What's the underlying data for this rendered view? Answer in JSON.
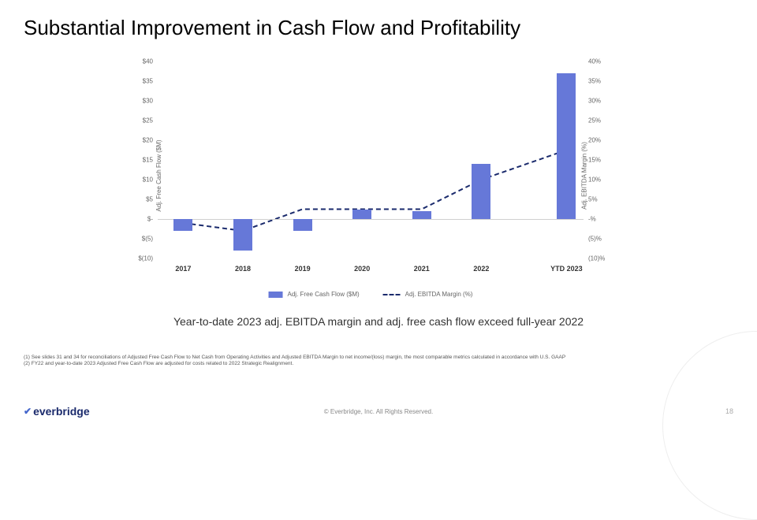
{
  "title": "Substantial Improvement in Cash Flow and Profitability",
  "subtitle": "Year-to-date 2023 adj. EBITDA margin and adj. free cash flow exceed full-year 2022",
  "chart": {
    "type": "bar+line",
    "categories": [
      "2017",
      "2018",
      "2019",
      "2020",
      "2021",
      "2022",
      "YTD 2023"
    ],
    "x_positions_pct": [
      6,
      20,
      34,
      48,
      62,
      76,
      96
    ],
    "bar_values": [
      -3,
      -8,
      -3,
      2.5,
      2,
      14,
      37
    ],
    "line_values_pct": [
      -1,
      -3,
      2.5,
      2.5,
      2.5,
      10,
      17.5
    ],
    "bar_color": "#6678d8",
    "line_color": "#1a2a6c",
    "line_dash": "6,4",
    "line_width": 2,
    "y_left": {
      "min": -10,
      "max": 40,
      "step": 5,
      "title": "Adj. Free Cash Flow ($M)",
      "labels": [
        "$(10)",
        "$(5)",
        "$-",
        "$5",
        "$10",
        "$15",
        "$20",
        "$25",
        "$30",
        "$35",
        "$40"
      ]
    },
    "y_right": {
      "min": -10,
      "max": 40,
      "step": 5,
      "title": "Adj. EBITDA Margin (%)",
      "labels": [
        "(10)%",
        "(5)%",
        "-%",
        "5%",
        "10%",
        "15%",
        "20%",
        "25%",
        "30%",
        "35%",
        "40%"
      ]
    },
    "legend": {
      "bar": "Adj. Free Cash Flow ($M)",
      "line": "Adj. EBITDA Margin (%)"
    },
    "background_color": "#ffffff"
  },
  "footnotes": [
    "(1) See slides 31 and 34 for reconciliations of Adjusted Free Cash Flow to Net Cash from Operating Activities and Adjusted EBITDA Margin to net income/(loss) margin, the most comparable metrics calculated in accordance with U.S. GAAP",
    "(2) FY22 and year-to-date 2023 Adjusted Free Cash Flow are adjusted for costs related to 2022 Strategic Realignment."
  ],
  "footer": {
    "logo": "everbridge",
    "copyright": "© Everbridge, Inc. All Rights Reserved.",
    "page": "18"
  }
}
